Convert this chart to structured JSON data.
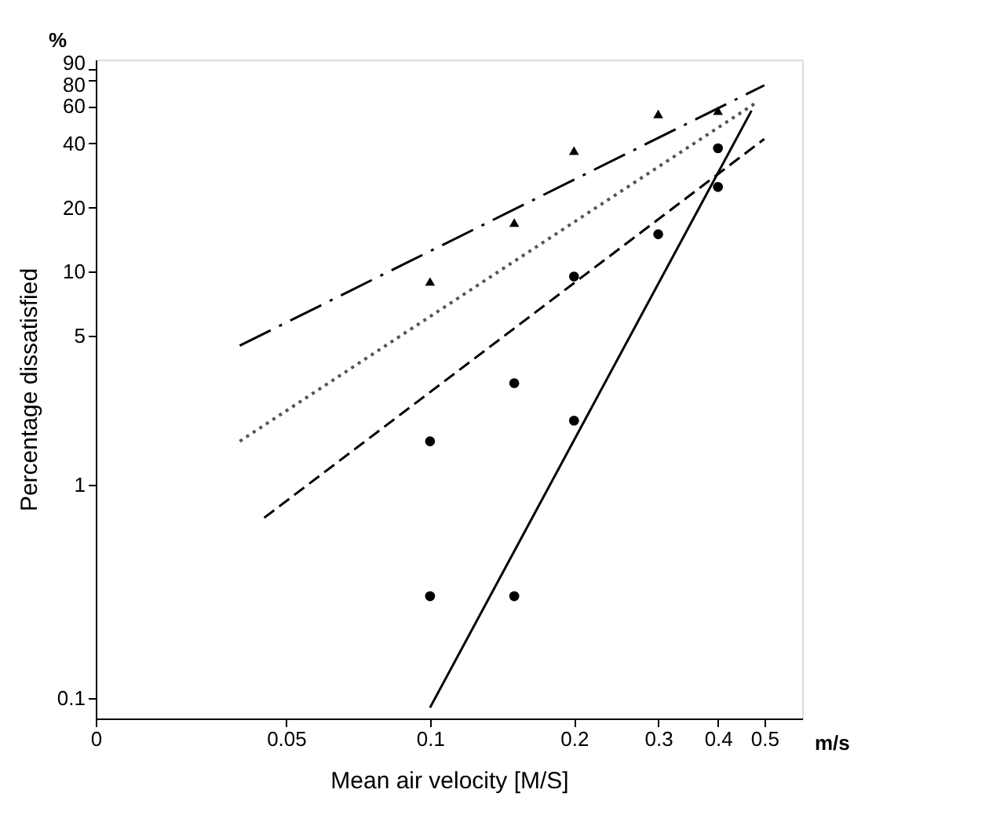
{
  "chart_data": {
    "type": "scatter",
    "xlabel": "Mean air velocity [M/S]",
    "ylabel": "Percentage dissatisfied",
    "annotations": [
      "%",
      "m/s"
    ],
    "xlim": [
      0,
      0.6
    ],
    "xticks": [
      0,
      0.05,
      0.1,
      0.2,
      0.3,
      0.4,
      0.5
    ],
    "ylim": [
      0.08,
      99
    ],
    "yticks": [
      0.1,
      1,
      5,
      10,
      20,
      40,
      60,
      80,
      90
    ],
    "log": "xy",
    "grid": false,
    "series": [
      {
        "marker": "triangle",
        "color": "#000000",
        "x": [
          0.1,
          0.15,
          0.2,
          0.3,
          0.4
        ],
        "values": [
          9,
          17,
          37,
          55,
          57
        ]
      },
      {
        "marker": "circle",
        "color": "#000000",
        "x": [
          0.1,
          0.15,
          0.2,
          0.3,
          0.4
        ],
        "values": [
          1.6,
          3,
          9.5,
          15,
          25
        ]
      },
      {
        "marker": "circle",
        "color": "#000000",
        "x": [
          0.1,
          0.15,
          0.2,
          0.4
        ],
        "values": [
          0.3,
          0.3,
          2,
          38
        ]
      },
      {
        "type": "line",
        "line_style": "dashdot",
        "color": "#000000",
        "x": [
          0.04,
          0.5
        ],
        "values": [
          4.5,
          75
        ]
      },
      {
        "type": "line",
        "line_style": "dotted",
        "color": "#555555",
        "x": [
          0.04,
          0.48
        ],
        "values": [
          1.6,
          62
        ]
      },
      {
        "type": "line",
        "line_style": "dashed",
        "color": "#000000",
        "x": [
          0.045,
          0.5
        ],
        "values": [
          0.7,
          42
        ]
      },
      {
        "type": "line",
        "line_style": "solid",
        "color": "#000000",
        "x": [
          0.1,
          0.47
        ],
        "values": [
          0.09,
          57
        ]
      }
    ]
  }
}
